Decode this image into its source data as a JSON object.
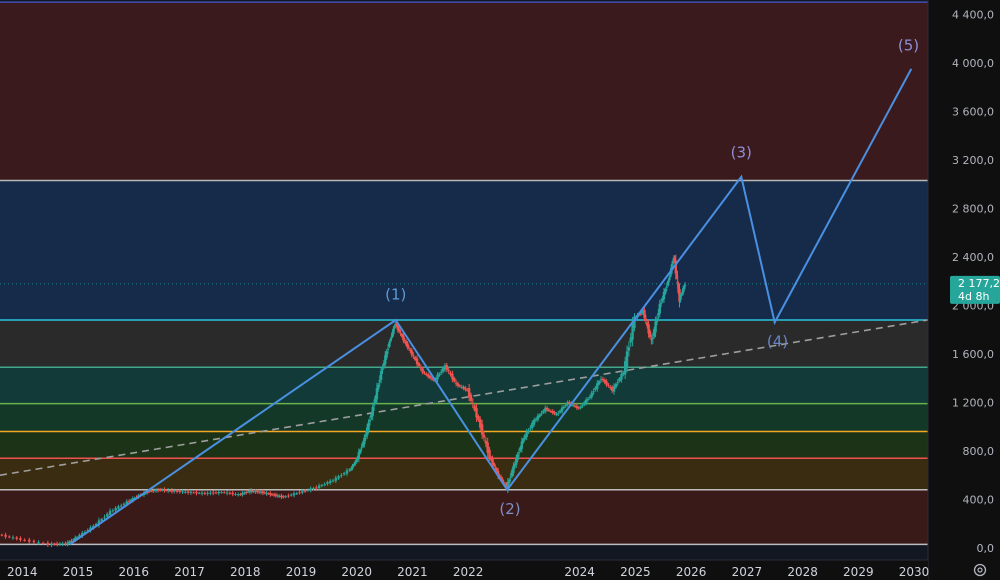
{
  "chart_data": {
    "type": "line",
    "title": "",
    "xlabel": "",
    "ylabel": "",
    "xlim": [
      2013.6,
      2030.25
    ],
    "ylim": [
      0,
      4500
    ],
    "y_ticks": [
      {
        "value": 0,
        "label": "0,0"
      },
      {
        "value": 400,
        "label": "400,0"
      },
      {
        "value": 800,
        "label": "800,0"
      },
      {
        "value": 1200,
        "label": "1 200,0"
      },
      {
        "value": 1600,
        "label": "1 600,0"
      },
      {
        "value": 2000,
        "label": "2 000,0"
      },
      {
        "value": 2400,
        "label": "2 400,0"
      },
      {
        "value": 2800,
        "label": "2 800,0"
      },
      {
        "value": 3200,
        "label": "3 200,0"
      },
      {
        "value": 3600,
        "label": "3 600,0"
      },
      {
        "value": 4000,
        "label": "4 000,0"
      },
      {
        "value": 4400,
        "label": "4 400,0"
      }
    ],
    "x_ticks": [
      "2014",
      "2015",
      "2016",
      "2017",
      "2018",
      "2019",
      "2020",
      "2021",
      "2022",
      "2024",
      "2025",
      "2026",
      "2027",
      "2028",
      "2029",
      "2030"
    ],
    "x_tick_years": [
      2014,
      2015,
      2016,
      2017,
      2018,
      2019,
      2020,
      2021,
      2022,
      2024,
      2025,
      2026,
      2027,
      2028,
      2029,
      2030
    ],
    "current_price": {
      "label": "2 177,2",
      "value": 2177.2,
      "countdown": "4d 8h",
      "color": "#26a69a"
    },
    "fib_zones": [
      {
        "from": 3030,
        "to": 4500,
        "fill": "#3b1a1e",
        "line": "#3e4fb0"
      },
      {
        "from": 1880,
        "to": 3030,
        "fill": "#162a4a",
        "line": "#b8b8b8"
      },
      {
        "from": 1490,
        "to": 1880,
        "fill": "#2a2a2a",
        "line": "#26c6da"
      },
      {
        "from": 1190,
        "to": 1490,
        "fill": "#113a38",
        "line": "#43a88a"
      },
      {
        "from": 960,
        "to": 1190,
        "fill": "#133828",
        "line": "#6ab04c"
      },
      {
        "from": 740,
        "to": 960,
        "fill": "#1c3318",
        "line": "#f5a623"
      },
      {
        "from": 480,
        "to": 740,
        "fill": "#3a2c10",
        "line": "#ef5350"
      },
      {
        "from": 30,
        "to": 480,
        "fill": "#3a1919",
        "line": "#bdbdbd"
      }
    ],
    "trend_line": {
      "points": [
        [
          2013.6,
          600
        ],
        [
          2030.25,
          1880
        ]
      ],
      "color": "#9e9e9e"
    },
    "wave_path": {
      "color": "#4a90e2",
      "points": [
        [
          2014.85,
          30
        ],
        [
          2020.7,
          1880
        ],
        [
          2022.7,
          480
        ],
        [
          2026.9,
          3060
        ],
        [
          2027.5,
          1860
        ],
        [
          2029.95,
          3950
        ]
      ]
    },
    "wave_labels": [
      {
        "text": "(1)",
        "x": 2020.7,
        "y": 2050,
        "color": "#5b9bd5"
      },
      {
        "text": "(2)",
        "x": 2022.75,
        "y": 280,
        "color": "#7b8fc8"
      },
      {
        "text": "(3)",
        "x": 2026.9,
        "y": 3220,
        "color": "#8e8fd6"
      },
      {
        "text": "(4)",
        "x": 2027.55,
        "y": 1660,
        "color": "#6a86c8"
      },
      {
        "text": "(5)",
        "x": 2029.9,
        "y": 4100,
        "color": "#8e8fd6"
      }
    ],
    "series": [
      {
        "type": "candlestick",
        "up_color": "#26a69a",
        "down_color": "#ef5350",
        "x": [
          2013.6,
          2014.0,
          2014.5,
          2014.8,
          2015.0,
          2015.3,
          2015.6,
          2015.9,
          2016.1,
          2016.3,
          2016.5,
          2016.7,
          2017.0,
          2017.3,
          2017.6,
          2017.9,
          2018.1,
          2018.3,
          2018.5,
          2018.7,
          2019.0,
          2019.3,
          2019.6,
          2019.9,
          2020.0,
          2020.15,
          2020.3,
          2020.45,
          2020.6,
          2020.7,
          2020.85,
          2021.0,
          2021.2,
          2021.4,
          2021.6,
          2021.8,
          2022.0,
          2022.2,
          2022.4,
          2022.55,
          2022.7,
          2022.85,
          2023.0,
          2023.2,
          2023.4,
          2023.6,
          2023.8,
          2024.0,
          2024.2,
          2024.4,
          2024.6,
          2024.8,
          2025.0,
          2025.15,
          2025.3,
          2025.45,
          2025.6,
          2025.7,
          2025.8,
          2025.9
        ],
        "close": [
          110,
          70,
          30,
          35,
          90,
          180,
          300,
          380,
          430,
          470,
          480,
          470,
          460,
          450,
          460,
          440,
          470,
          460,
          440,
          420,
          460,
          500,
          560,
          650,
          720,
          900,
          1150,
          1450,
          1700,
          1850,
          1720,
          1600,
          1450,
          1380,
          1500,
          1350,
          1300,
          1050,
          750,
          600,
          500,
          700,
          900,
          1050,
          1150,
          1100,
          1200,
          1150,
          1250,
          1400,
          1300,
          1450,
          1900,
          1950,
          1700,
          2000,
          2200,
          2400,
          2050,
          2177
        ]
      }
    ]
  }
}
